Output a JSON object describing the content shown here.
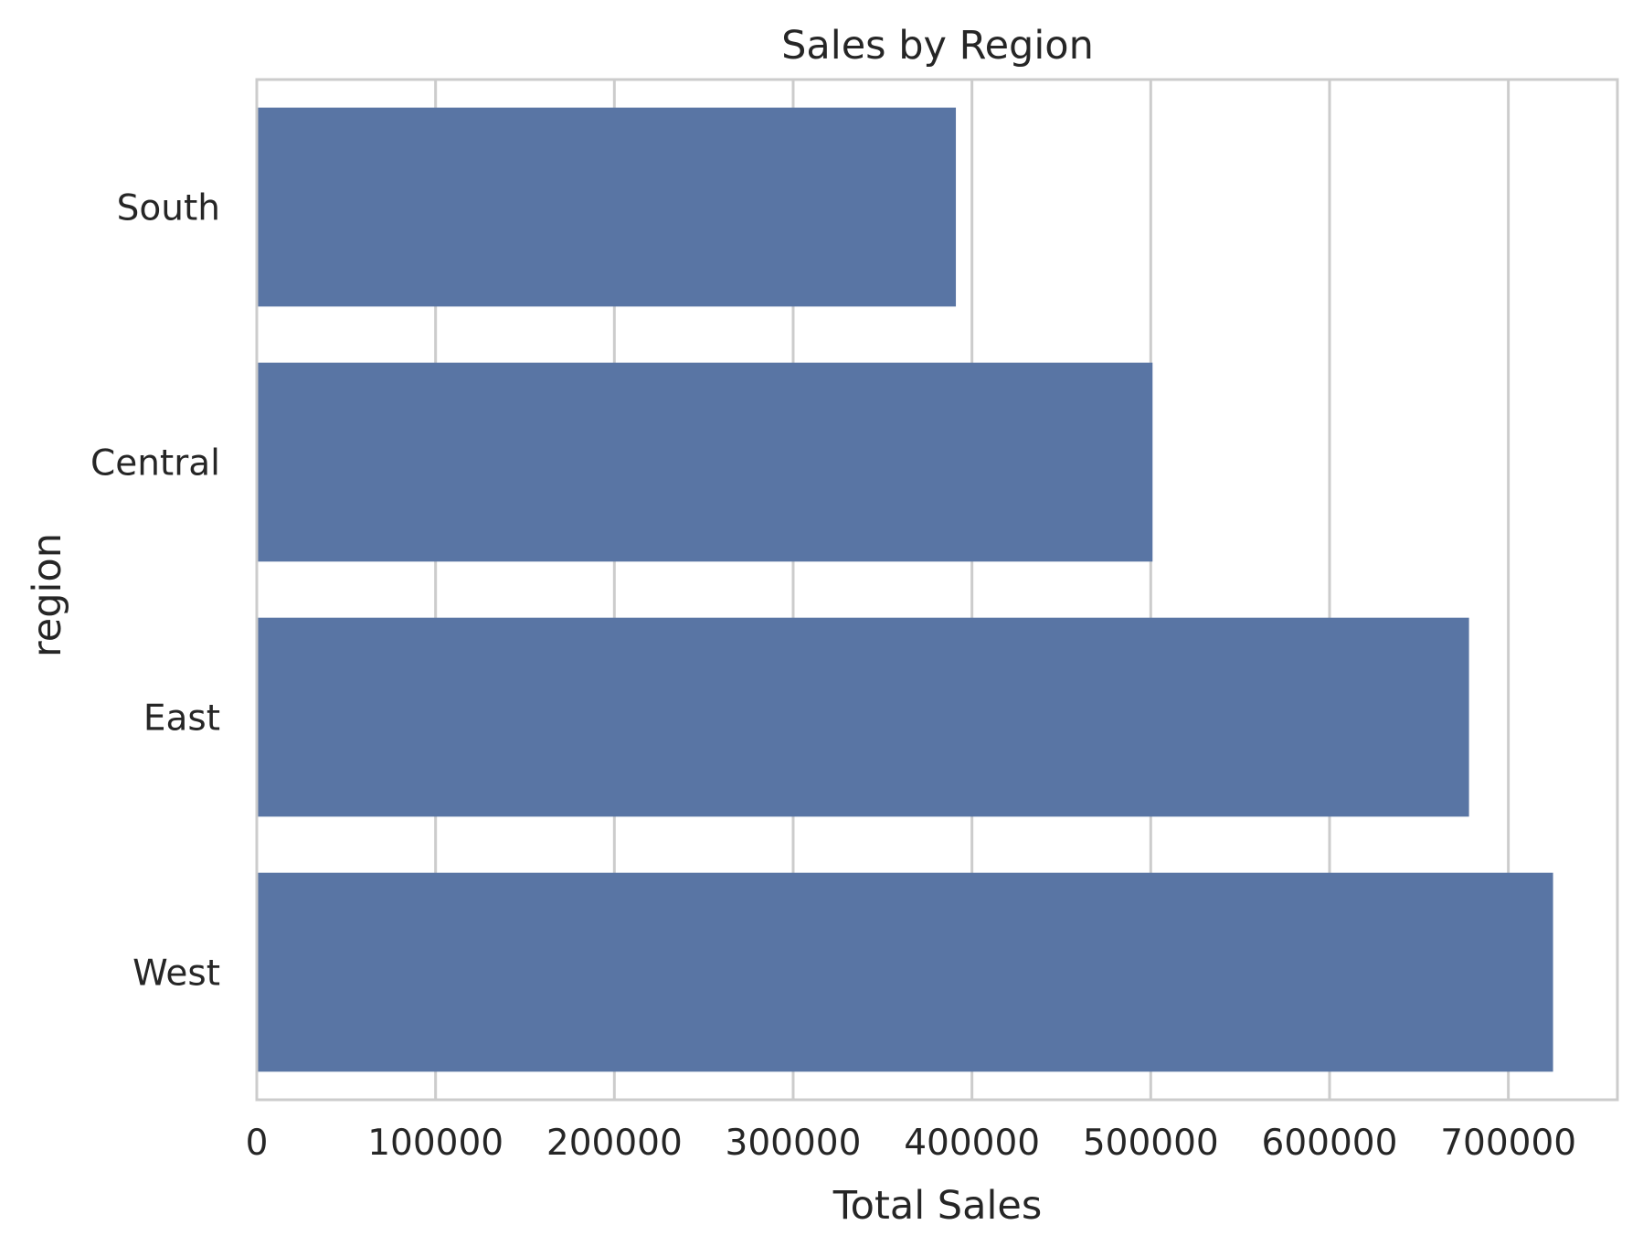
{
  "chart_data": {
    "type": "bar",
    "orientation": "horizontal",
    "title": "Sales by Region",
    "xlabel": "Total Sales",
    "ylabel": "region",
    "categories": [
      "South",
      "Central",
      "East",
      "West"
    ],
    "values": [
      391000,
      501000,
      678000,
      725000
    ],
    "xlim": [
      0,
      761000
    ],
    "xticks": [
      0,
      100000,
      200000,
      300000,
      400000,
      500000,
      600000,
      700000
    ],
    "xtick_labels": [
      "0",
      "100000",
      "200000",
      "300000",
      "400000",
      "500000",
      "600000",
      "700000"
    ],
    "grid": "vertical",
    "legend": "none",
    "colors": {
      "bar": "#5975a4",
      "grid": "#cccccc",
      "spine": "#cccccc",
      "text": "#262626",
      "background": "#ffffff"
    }
  }
}
